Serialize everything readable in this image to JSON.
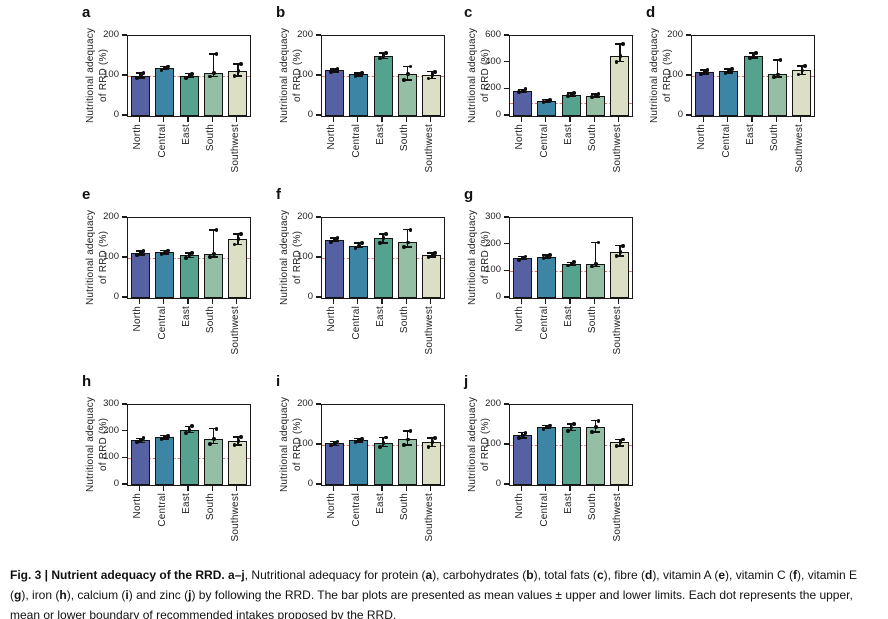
{
  "colors": {
    "bars": [
      "#5561a3",
      "#3d85a5",
      "#55a28e",
      "#95bfa5",
      "#dcdec5"
    ],
    "refline": "#e0796c",
    "axis": "#1a1a1a",
    "dots": "#0d0d0d"
  },
  "ylabel_lines": {
    "line1": "Nutritional adequacy",
    "line2": "of RRD (%)"
  },
  "chart_data": [
    {
      "panel": "a",
      "nutrient": "protein",
      "type": "bar",
      "categories": [
        "North",
        "Central",
        "East",
        "South",
        "Southwest"
      ],
      "values": [
        100,
        120,
        101,
        107,
        112
      ],
      "err_low": [
        95,
        116,
        96,
        99,
        100
      ],
      "err_high": [
        107,
        124,
        106,
        155,
        130
      ],
      "ylabel": "Nutritional adequacy of RRD (%)",
      "ylim": [
        0,
        200
      ],
      "yticks": [
        0,
        100,
        200
      ],
      "refline_y": 100
    },
    {
      "panel": "b",
      "nutrient": "carbohydrates",
      "type": "bar",
      "categories": [
        "North",
        "Central",
        "East",
        "South",
        "Southwest"
      ],
      "values": [
        114,
        104,
        150,
        105,
        103
      ],
      "err_low": [
        110,
        100,
        144,
        90,
        94
      ],
      "err_high": [
        118,
        108,
        157,
        124,
        111
      ],
      "ylabel": "Nutritional adequacy of RRD (%)",
      "ylim": [
        0,
        200
      ],
      "yticks": [
        0,
        100,
        200
      ],
      "refline_y": 100
    },
    {
      "panel": "c",
      "nutrient": "total fats",
      "type": "bar",
      "categories": [
        "North",
        "Central",
        "East",
        "South",
        "Southwest"
      ],
      "values": [
        190,
        113,
        160,
        153,
        450
      ],
      "err_low": [
        178,
        103,
        148,
        142,
        408
      ],
      "err_high": [
        200,
        123,
        172,
        165,
        540
      ],
      "ylabel": "Nutritional adequacy of RRD (%)",
      "ylim": [
        0,
        600
      ],
      "yticks": [
        0,
        200,
        400,
        600
      ],
      "refline_y": 100
    },
    {
      "panel": "d",
      "nutrient": "fibre",
      "type": "bar",
      "categories": [
        "North",
        "Central",
        "East",
        "South",
        "Southwest"
      ],
      "values": [
        110,
        113,
        151,
        104,
        114
      ],
      "err_low": [
        105,
        108,
        145,
        98,
        104
      ],
      "err_high": [
        115,
        118,
        158,
        140,
        125
      ],
      "ylabel": "Nutritional adequacy of RRD (%)",
      "ylim": [
        0,
        200
      ],
      "yticks": [
        0,
        100,
        200
      ],
      "refline_y": 100
    },
    {
      "panel": "e",
      "nutrient": "vitamin A",
      "type": "bar",
      "categories": [
        "North",
        "Central",
        "East",
        "South",
        "Southwest"
      ],
      "values": [
        112,
        114,
        107,
        111,
        147
      ],
      "err_low": [
        107,
        110,
        101,
        102,
        134
      ],
      "err_high": [
        117,
        119,
        112,
        170,
        160
      ],
      "ylabel": "Nutritional adequacy of RRD (%)",
      "ylim": [
        0,
        200
      ],
      "yticks": [
        0,
        100,
        200
      ],
      "refline_y": 100
    },
    {
      "panel": "f",
      "nutrient": "vitamin C",
      "type": "bar",
      "categories": [
        "North",
        "Central",
        "East",
        "South",
        "Southwest"
      ],
      "values": [
        146,
        131,
        151,
        139,
        107
      ],
      "err_low": [
        141,
        126,
        137,
        128,
        102
      ],
      "err_high": [
        150,
        137,
        160,
        171,
        112
      ],
      "ylabel": "Nutritional adequacy of RRD (%)",
      "ylim": [
        0,
        200
      ],
      "yticks": [
        0,
        100,
        200
      ],
      "refline_y": 100
    },
    {
      "panel": "g",
      "nutrient": "vitamin E",
      "type": "bar",
      "categories": [
        "North",
        "Central",
        "East",
        "South",
        "Southwest"
      ],
      "values": [
        150,
        155,
        128,
        127,
        172
      ],
      "err_low": [
        144,
        149,
        122,
        118,
        158
      ],
      "err_high": [
        156,
        161,
        134,
        208,
        196
      ],
      "ylabel": "Nutritional adequacy of RRD (%)",
      "ylim": [
        0,
        300
      ],
      "yticks": [
        0,
        100,
        200,
        300
      ],
      "refline_y": 100
    },
    {
      "panel": "h",
      "nutrient": "iron",
      "type": "bar",
      "categories": [
        "North",
        "Central",
        "East",
        "South",
        "Southwest"
      ],
      "values": [
        168,
        179,
        207,
        174,
        164
      ],
      "err_low": [
        160,
        173,
        196,
        155,
        150
      ],
      "err_high": [
        175,
        185,
        220,
        211,
        180
      ],
      "ylabel": "Nutritional adequacy of RRD (%)",
      "ylim": [
        0,
        300
      ],
      "yticks": [
        0,
        100,
        200,
        300
      ],
      "refline_y": 100
    },
    {
      "panel": "i",
      "nutrient": "calcium",
      "type": "bar",
      "categories": [
        "North",
        "Central",
        "East",
        "South",
        "Southwest"
      ],
      "values": [
        104,
        112,
        106,
        114,
        108
      ],
      "err_low": [
        99,
        108,
        96,
        100,
        96
      ],
      "err_high": [
        109,
        116,
        119,
        135,
        118
      ],
      "ylabel": "Nutritional adequacy of RRD (%)",
      "ylim": [
        0,
        200
      ],
      "yticks": [
        0,
        100,
        200
      ],
      "refline_y": 100
    },
    {
      "panel": "j",
      "nutrient": "zinc",
      "type": "bar",
      "categories": [
        "North",
        "Central",
        "East",
        "South",
        "Southwest"
      ],
      "values": [
        124,
        145,
        144,
        146,
        107
      ],
      "err_low": [
        118,
        141,
        136,
        133,
        97
      ],
      "err_high": [
        131,
        149,
        152,
        161,
        114
      ],
      "ylabel": "Nutritional adequacy of RRD (%)",
      "ylim": [
        0,
        200
      ],
      "yticks": [
        0,
        100,
        200
      ],
      "refline_y": 100
    }
  ],
  "caption": {
    "segments": [
      {
        "text": "Fig. 3 | Nutrient adequacy of the RRD. a–j",
        "bold": true
      },
      {
        "text": ", Nutritional adequacy for protein (",
        "bold": false
      },
      {
        "text": "a",
        "bold": true
      },
      {
        "text": "), carbohydrates (",
        "bold": false
      },
      {
        "text": "b",
        "bold": true
      },
      {
        "text": "), total fats (",
        "bold": false
      },
      {
        "text": "c",
        "bold": true
      },
      {
        "text": "), fibre (",
        "bold": false
      },
      {
        "text": "d",
        "bold": true
      },
      {
        "text": "), vitamin A (",
        "bold": false
      },
      {
        "text": "e",
        "bold": true
      },
      {
        "text": "), vitamin C (",
        "bold": false
      },
      {
        "text": "f",
        "bold": true
      },
      {
        "text": "), vitamin E (",
        "bold": false
      },
      {
        "text": "g",
        "bold": true
      },
      {
        "text": "),",
        "bold": false
      },
      {
        "text": " iron (",
        "bold": false
      },
      {
        "text": "h",
        "bold": true
      },
      {
        "text": "), calcium (",
        "bold": false
      },
      {
        "text": "i",
        "bold": true
      },
      {
        "text": ") and zinc (",
        "bold": false
      },
      {
        "text": "j",
        "bold": true
      },
      {
        "text": ") by following the RRD. The bar plots are presented as mean values ± upper and lower limits. Each dot represents the upper, mean or lower boundary of recommended intakes proposed by the RRD.",
        "bold": false
      }
    ]
  }
}
